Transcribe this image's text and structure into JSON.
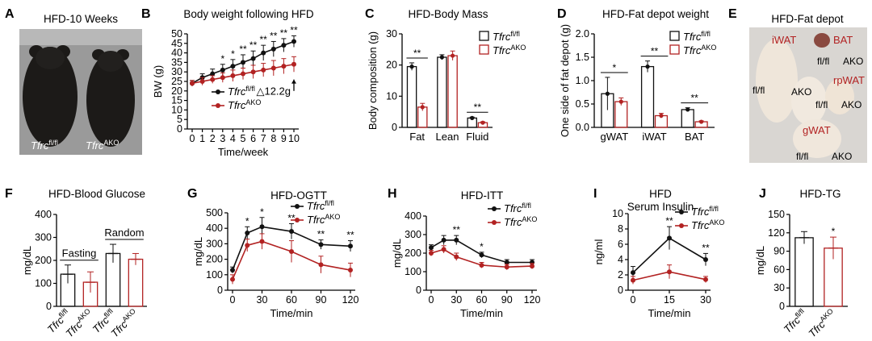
{
  "colors": {
    "ctrl": "#111111",
    "ako": "#b22222",
    "photo_bg_mice": "#9a9a9a",
    "photo_bg_fat": "#d9d6d2"
  },
  "panel_A": {
    "label": "A",
    "title": "HFD-10 Weeks",
    "mouse_left": "Tfrc",
    "mouse_left_sup": "fl/fl",
    "mouse_right": "Tfrc",
    "mouse_right_sup": "AKO"
  },
  "panel_E": {
    "label": "E",
    "title": "HFD-Fat depot",
    "labels": {
      "iwat": "iWAT",
      "bat": "BAT",
      "rpwat": "rpWAT",
      "gwat": "gWAT",
      "flfl_1": "fl/fl",
      "ako_1": "AKO",
      "flfl_2": "fl/fl",
      "ako_2": "AKO",
      "flfl_3": "fl/fl",
      "ako_3": "AKO",
      "flfl_4": "fl/fl",
      "ako_4": "AKO"
    }
  },
  "chart_data": [
    {
      "panel": "B",
      "type": "line",
      "title": "Body weight following HFD",
      "xlabel": "Time/week",
      "ylabel": "BW (g)",
      "x": [
        0,
        1,
        2,
        3,
        4,
        5,
        6,
        7,
        8,
        9,
        10
      ],
      "xlim": [
        0,
        10
      ],
      "ylim": [
        0,
        50
      ],
      "yticks": [
        0,
        5,
        10,
        15,
        20,
        25,
        30,
        35,
        40,
        45,
        50
      ],
      "series": [
        {
          "name": "Tfrc fl/fl",
          "gene": "Tfrc",
          "sup": "fl/fl",
          "color": "#111111",
          "values": [
            24,
            27,
            29,
            31,
            33,
            35,
            37,
            40,
            42,
            44,
            46
          ],
          "err": [
            1.5,
            2,
            2.5,
            3,
            3.5,
            4,
            4,
            4,
            4,
            3.5,
            3
          ]
        },
        {
          "name": "Tfrc AKO",
          "gene": "Tfrc",
          "sup": "AKO",
          "color": "#b22222",
          "values": [
            24,
            25,
            26,
            27,
            28,
            29,
            30,
            31,
            32,
            33,
            34
          ],
          "err": [
            1.5,
            2,
            2,
            2.5,
            3,
            3,
            3.5,
            3.5,
            4,
            4,
            4
          ]
        }
      ],
      "sig": [
        {
          "x": 3,
          "t": "*"
        },
        {
          "x": 4,
          "t": "*"
        },
        {
          "x": 5,
          "t": "**"
        },
        {
          "x": 6,
          "t": "**"
        },
        {
          "x": 7,
          "t": "**"
        },
        {
          "x": 8,
          "t": "**"
        },
        {
          "x": 9,
          "t": "**"
        },
        {
          "x": 10,
          "t": "**"
        }
      ],
      "annotation": "△12.2g"
    },
    {
      "panel": "C",
      "type": "bar",
      "title": "HFD-Body Mass",
      "ylabel": "Body composition (g)",
      "categories": [
        "Fat",
        "Lean",
        "Fluid"
      ],
      "ylim": [
        0,
        30
      ],
      "yticks": [
        0,
        10,
        20,
        30
      ],
      "series": [
        {
          "name": "Tfrc fl/fl",
          "gene": "Tfrc",
          "sup": "fl/fl",
          "color": "#111111",
          "values": [
            19.5,
            22.5,
            3
          ],
          "err": [
            1.2,
            0.8,
            0.3
          ]
        },
        {
          "name": "Tfrc AKO",
          "gene": "Tfrc",
          "sup": "AKO",
          "color": "#b22222",
          "values": [
            6.5,
            23,
            1.5
          ],
          "err": [
            1.2,
            1.5,
            0.3
          ]
        }
      ],
      "sig": [
        {
          "cat": 0,
          "t": "**"
        },
        {
          "cat": 2,
          "t": "**"
        }
      ]
    },
    {
      "panel": "D",
      "type": "bar",
      "title": "HFD-Fat depot weight",
      "ylabel": "One side of fat depot (g)",
      "categories": [
        "gWAT",
        "iWAT",
        "BAT"
      ],
      "ylim": [
        0,
        2.0
      ],
      "yticks": [
        0.0,
        0.5,
        1.0,
        1.5,
        2.0
      ],
      "series": [
        {
          "name": "Tfrc fl/fl",
          "gene": "Tfrc",
          "sup": "fl/fl",
          "color": "#111111",
          "values": [
            0.72,
            1.3,
            0.38
          ],
          "err": [
            0.35,
            0.12,
            0.04
          ]
        },
        {
          "name": "Tfrc AKO",
          "gene": "Tfrc",
          "sup": "AKO",
          "color": "#b22222",
          "values": [
            0.55,
            0.25,
            0.12
          ],
          "err": [
            0.08,
            0.05,
            0.02
          ]
        }
      ],
      "sig": [
        {
          "cat": 0,
          "t": "*"
        },
        {
          "cat": 1,
          "t": "**"
        },
        {
          "cat": 2,
          "t": "**"
        }
      ]
    },
    {
      "panel": "F",
      "type": "bar",
      "title": "HFD-Blood Glucose",
      "ylabel": "mg/dL",
      "categories": [
        "Tfrc fl/fl",
        "Tfrc AKO",
        "Tfrc fl/fl",
        "Tfrc AKO"
      ],
      "cat_gene": [
        "Tfrc",
        "Tfrc",
        "Tfrc",
        "Tfrc"
      ],
      "cat_sup": [
        "fl/fl",
        "AKO",
        "fl/fl",
        "AKO"
      ],
      "colors": [
        "#111111",
        "#b22222",
        "#111111",
        "#b22222"
      ],
      "ylim": [
        0,
        400
      ],
      "yticks": [
        0,
        100,
        200,
        300,
        400
      ],
      "values": [
        140,
        105,
        230,
        205
      ],
      "err": [
        40,
        45,
        40,
        25
      ],
      "groups": [
        "Fasting",
        "Random"
      ]
    },
    {
      "panel": "G",
      "type": "line",
      "title": "HFD-OGTT",
      "xlabel": "Time/min",
      "ylabel": "mg/dL",
      "x": [
        0,
        15,
        30,
        60,
        90,
        120
      ],
      "xlim": [
        0,
        120
      ],
      "ylim": [
        0,
        500
      ],
      "yticks": [
        0,
        100,
        200,
        300,
        400,
        500
      ],
      "xticks": [
        0,
        30,
        60,
        90,
        120
      ],
      "series": [
        {
          "name": "Tfrc fl/fl",
          "gene": "Tfrc",
          "sup": "fl/fl",
          "color": "#111111",
          "values": [
            130,
            370,
            410,
            380,
            295,
            285
          ],
          "err": [
            20,
            40,
            60,
            50,
            30,
            35
          ]
        },
        {
          "name": "Tfrc AKO",
          "gene": "Tfrc",
          "sup": "AKO",
          "color": "#b22222",
          "values": [
            70,
            290,
            315,
            250,
            165,
            130
          ],
          "err": [
            30,
            40,
            50,
            70,
            55,
            45
          ]
        }
      ],
      "sig": [
        {
          "x": 15,
          "t": "*"
        },
        {
          "x": 30,
          "t": "*"
        },
        {
          "x": 60,
          "t": "**"
        },
        {
          "x": 90,
          "t": "**"
        },
        {
          "x": 120,
          "t": "**"
        }
      ]
    },
    {
      "panel": "H",
      "type": "line",
      "title": "HFD-ITT",
      "xlabel": "Time/min",
      "ylabel": "mg/dL",
      "x": [
        0,
        15,
        30,
        60,
        90,
        120
      ],
      "xlim": [
        0,
        120
      ],
      "ylim": [
        0,
        400
      ],
      "yticks": [
        0,
        100,
        200,
        300,
        400
      ],
      "xticks": [
        0,
        30,
        60,
        90,
        120
      ],
      "series": [
        {
          "name": "Tfrc fl/fl",
          "gene": "Tfrc",
          "sup": "fl/fl",
          "color": "#111111",
          "values": [
            230,
            270,
            270,
            190,
            150,
            150
          ],
          "err": [
            15,
            25,
            25,
            15,
            15,
            15
          ]
        },
        {
          "name": "Tfrc AKO",
          "gene": "Tfrc",
          "sup": "AKO",
          "color": "#b22222",
          "values": [
            200,
            220,
            180,
            135,
            125,
            130
          ],
          "err": [
            15,
            20,
            20,
            15,
            15,
            15
          ]
        }
      ],
      "sig": [
        {
          "x": 30,
          "t": "**"
        },
        {
          "x": 60,
          "t": "*"
        }
      ]
    },
    {
      "panel": "I",
      "type": "line",
      "title": "HFD",
      "subtitle": "Serum Insulin",
      "xlabel": "Time/min",
      "ylabel": "ng/ml",
      "x": [
        0,
        15,
        30
      ],
      "xlim": [
        0,
        30
      ],
      "ylim": [
        0,
        10
      ],
      "yticks": [
        0,
        2,
        4,
        6,
        8,
        10
      ],
      "xticks": [
        0,
        15,
        30
      ],
      "series": [
        {
          "name": "Tfrc fl/fl",
          "gene": "Tfrc",
          "sup": "fl/fl",
          "color": "#111111",
          "values": [
            2.3,
            6.8,
            4.0
          ],
          "err": [
            0.8,
            1.5,
            0.8
          ]
        },
        {
          "name": "Tfrc AKO",
          "gene": "Tfrc",
          "sup": "AKO",
          "color": "#b22222",
          "values": [
            1.3,
            2.4,
            1.4
          ],
          "err": [
            0.5,
            0.9,
            0.4
          ]
        }
      ],
      "sig": [
        {
          "x": 15,
          "t": "**"
        },
        {
          "x": 30,
          "t": "**"
        }
      ]
    },
    {
      "panel": "J",
      "type": "bar",
      "title": "HFD-TG",
      "ylabel": "mg/dL",
      "categories": [
        "Tfrc fl/fl",
        "Tfrc AKO"
      ],
      "cat_gene": [
        "Tfrc",
        "Tfrc"
      ],
      "cat_sup": [
        "fl/fl",
        "AKO"
      ],
      "colors": [
        "#111111",
        "#b22222"
      ],
      "ylim": [
        0,
        150
      ],
      "yticks": [
        0,
        30,
        60,
        90,
        120,
        150
      ],
      "values": [
        112,
        95
      ],
      "err": [
        10,
        18
      ],
      "sig": [
        {
          "cat": 1,
          "t": "*"
        }
      ]
    }
  ]
}
